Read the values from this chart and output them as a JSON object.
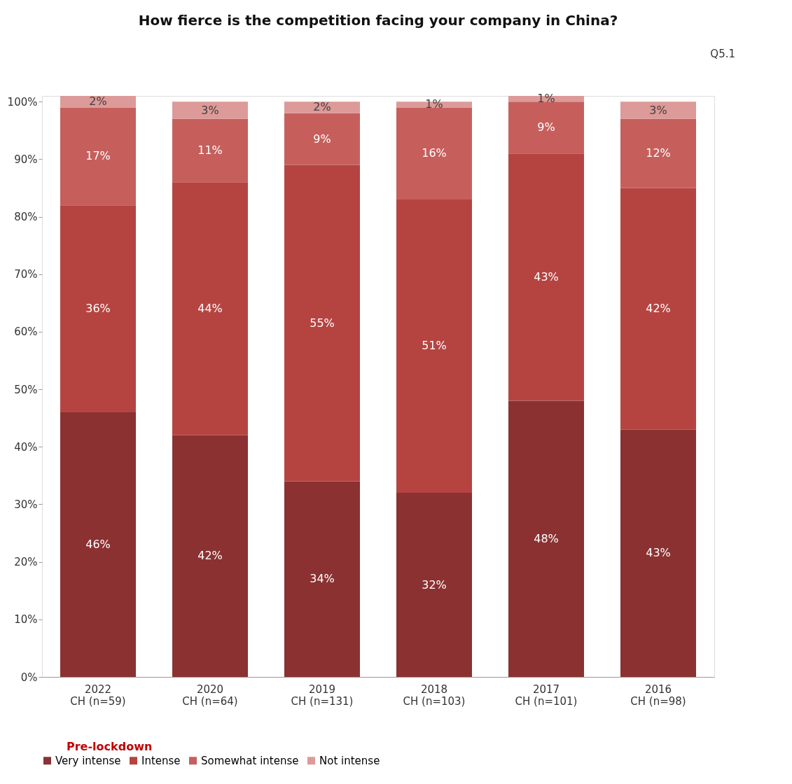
{
  "chart_data": {
    "type": "bar",
    "stacked": true,
    "title": "How fierce is the competition facing your company in China?",
    "annotations": [
      "Q5.1",
      "Pre-lockdown"
    ],
    "categories": [
      "2022\nCH (n=59)",
      "2020\nCH (n=64)",
      "2019\nCH (n=131)",
      "2018\nCH (n=103)",
      "2017\nCH (n=101)",
      "2016\nCH (n=98)"
    ],
    "series": [
      {
        "name": "Very intense",
        "color": "#8b3132",
        "values": [
          46,
          42,
          34,
          32,
          48,
          43
        ],
        "value_labels": [
          "46%",
          "42%",
          "34%",
          "32%",
          "48%",
          "43%"
        ]
      },
      {
        "name": "Intense",
        "color": "#b54441",
        "values": [
          36,
          44,
          55,
          51,
          43,
          42
        ],
        "value_labels": [
          "36%",
          "44%",
          "55%",
          "51%",
          "43%",
          "42%"
        ]
      },
      {
        "name": "Somewhat intense",
        "color": "#c65f5c",
        "values": [
          17,
          11,
          9,
          16,
          9,
          12
        ],
        "value_labels": [
          "17%",
          "11%",
          "9%",
          "16%",
          "9%",
          "12%"
        ]
      },
      {
        "name": "Not intense",
        "color": "#dc9a98",
        "values": [
          2,
          3,
          2,
          1,
          1,
          3
        ],
        "value_labels": [
          "2%",
          "3%",
          "2%",
          "1%",
          "1%",
          "3%"
        ]
      }
    ],
    "ylim": [
      0,
      101
    ],
    "yticks": [
      {
        "value": 0,
        "label": "0%"
      },
      {
        "value": 10,
        "label": "10%"
      },
      {
        "value": 20,
        "label": "20%"
      },
      {
        "value": 30,
        "label": "30%"
      },
      {
        "value": 40,
        "label": "40%"
      },
      {
        "value": 50,
        "label": "50%"
      },
      {
        "value": 60,
        "label": "60%"
      },
      {
        "value": 70,
        "label": "70%"
      },
      {
        "value": 80,
        "label": "80%"
      },
      {
        "value": 90,
        "label": "90%"
      },
      {
        "value": 100,
        "label": "100%"
      }
    ],
    "grid": false,
    "legend": "bottom"
  }
}
